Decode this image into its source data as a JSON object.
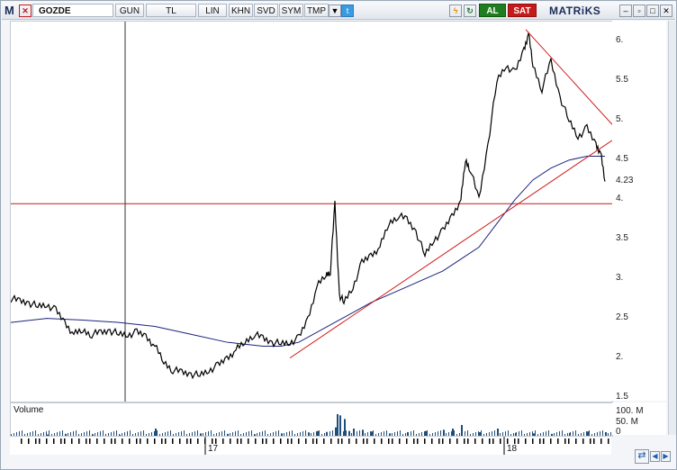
{
  "toolbar": {
    "symbol": "GOZDE",
    "period": "GUN",
    "currency": "TL",
    "scale": "LIN",
    "buttons": [
      "KHN",
      "SVD",
      "SYM",
      "TMP"
    ],
    "buy_label": "AL",
    "sell_label": "SAT",
    "brand": "MATRiKS",
    "window_controls": [
      "minimize-icon",
      "restore-icon",
      "maximize-icon",
      "close-icon"
    ],
    "colors": {
      "buy": "#1e7d1e",
      "sell": "#c41a1a",
      "twitter": "#3b9be0"
    }
  },
  "chart_data": {
    "type": "line",
    "series": [
      {
        "kind": "price"
      },
      {
        "kind": "moving-average",
        "color": "#1a237e"
      }
    ],
    "price_axis": {
      "ticks": [
        "6.",
        "5.5",
        "5.",
        "4.5",
        "4.23",
        "4.",
        "3.5",
        "3.",
        "2.5",
        "2.",
        "1.5"
      ],
      "ylim": [
        1.45,
        6.25
      ],
      "last_value": "4.23"
    },
    "time_axis": {
      "labels": [
        "17",
        "18"
      ]
    },
    "x": [
      0,
      10,
      20,
      30,
      40,
      50,
      60,
      70,
      80,
      90,
      100,
      110,
      120,
      130,
      140,
      150,
      160,
      170,
      180,
      190,
      200,
      210,
      220,
      230,
      240,
      250,
      260,
      270,
      280,
      290,
      300,
      310,
      320,
      330,
      340,
      350,
      355,
      360,
      365,
      370,
      380,
      390,
      400,
      410,
      420,
      430,
      440,
      450,
      460,
      470,
      480,
      490,
      500,
      505,
      510,
      520,
      530,
      540,
      550,
      560,
      570,
      575,
      580,
      590,
      600,
      610,
      620,
      630,
      640,
      650,
      655,
      660
    ],
    "y": [
      2.75,
      2.72,
      2.7,
      2.65,
      2.68,
      2.6,
      2.45,
      2.3,
      2.35,
      2.3,
      2.32,
      2.35,
      2.3,
      2.3,
      2.32,
      2.28,
      2.15,
      1.95,
      1.85,
      1.82,
      1.8,
      1.78,
      1.85,
      1.9,
      2.0,
      2.1,
      2.2,
      2.3,
      2.25,
      2.2,
      2.18,
      2.2,
      2.25,
      2.5,
      2.9,
      3.05,
      3.1,
      3.95,
      2.8,
      2.7,
      2.9,
      3.2,
      3.3,
      3.4,
      3.7,
      3.8,
      3.75,
      3.6,
      3.3,
      3.5,
      3.6,
      3.8,
      4.0,
      4.5,
      4.4,
      4.0,
      4.7,
      5.5,
      5.7,
      5.6,
      5.9,
      6.1,
      5.7,
      5.4,
      5.75,
      5.3,
      5.0,
      4.8,
      4.9,
      4.7,
      4.6,
      4.23
    ],
    "ma_x": [
      0,
      40,
      80,
      120,
      160,
      200,
      240,
      280,
      300,
      320,
      360,
      400,
      440,
      480,
      520,
      540,
      560,
      580,
      600,
      620,
      640,
      660
    ],
    "ma_y": [
      2.45,
      2.5,
      2.48,
      2.45,
      2.4,
      2.3,
      2.2,
      2.15,
      2.15,
      2.2,
      2.45,
      2.7,
      2.9,
      3.1,
      3.4,
      3.7,
      4.0,
      4.25,
      4.4,
      4.5,
      4.55,
      4.55
    ],
    "trendlines": [
      {
        "kind": "support",
        "color": "#d01a1a",
        "x": [
          310,
          668
        ],
        "y": [
          2.0,
          4.75
        ]
      },
      {
        "kind": "resistance",
        "color": "#d01a1a",
        "x": [
          572,
          668
        ],
        "y": [
          6.15,
          4.95
        ]
      },
      {
        "kind": "horizontal",
        "color": "#c41a1a",
        "y": 3.95
      }
    ],
    "cursor_x": 127
  },
  "volume": {
    "title": "Volume",
    "ticks": [
      "100. M",
      "50. M",
      "0"
    ],
    "ylim": [
      0,
      120
    ],
    "bars_x": [
      40,
      60,
      90,
      120,
      160,
      210,
      240,
      270,
      300,
      330,
      340,
      350,
      360,
      362,
      365,
      370,
      375,
      380,
      390,
      400,
      420,
      440,
      460,
      480,
      490,
      500,
      520,
      540,
      560,
      580,
      600,
      620,
      640,
      660
    ],
    "bars_v": [
      5,
      8,
      6,
      4,
      30,
      10,
      8,
      6,
      10,
      14,
      20,
      16,
      35,
      90,
      85,
      70,
      20,
      30,
      25,
      18,
      10,
      15,
      20,
      25,
      30,
      45,
      15,
      30,
      12,
      10,
      8,
      12,
      18,
      15
    ]
  }
}
